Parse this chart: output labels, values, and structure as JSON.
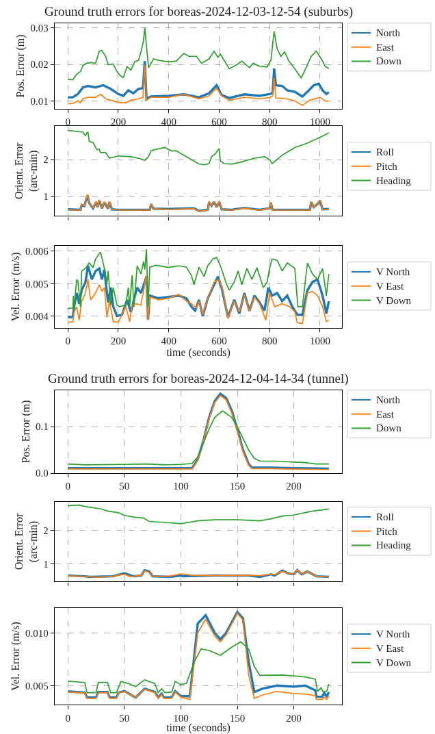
{
  "chart_data": [
    {
      "type": "line",
      "title": "Ground truth errors for boreas-2024-12-03-12-54 (suburbs)",
      "ylabel": "Pos. Error (m)",
      "xlim": [
        -52,
        1087
      ],
      "xticks": [
        0,
        200,
        400,
        600,
        800,
        1000
      ],
      "ylim": [
        0.0078,
        0.0313
      ],
      "yticks": [
        0.01,
        0.02,
        0.03
      ],
      "grid": true,
      "legend": "top right",
      "series": [
        {
          "name": "North",
          "color": "#1f77b4",
          "x": [
            0,
            20,
            40,
            60,
            80,
            110,
            140,
            170,
            200,
            220,
            240,
            260,
            280,
            298,
            305,
            312,
            330,
            400,
            460,
            520,
            560,
            590,
            610,
            640,
            700,
            760,
            800,
            812,
            818,
            825,
            850,
            870,
            900,
            930,
            950,
            975,
            995,
            1010,
            1025,
            1035
          ],
          "values": [
            0.011,
            0.011,
            0.0119,
            0.0137,
            0.0141,
            0.0137,
            0.0143,
            0.0133,
            0.0119,
            0.0114,
            0.0129,
            0.0121,
            0.0133,
            0.0135,
            0.0209,
            0.0106,
            0.0112,
            0.0114,
            0.0118,
            0.011,
            0.0121,
            0.0143,
            0.0116,
            0.0108,
            0.0118,
            0.0114,
            0.0119,
            0.0121,
            0.0189,
            0.0143,
            0.0141,
            0.0129,
            0.0125,
            0.0112,
            0.0125,
            0.0143,
            0.0147,
            0.0129,
            0.0119,
            0.0124
          ]
        },
        {
          "name": "East",
          "color": "#ff7f0e",
          "x": [
            0,
            20,
            40,
            50,
            60,
            80,
            110,
            130,
            150,
            170,
            200,
            230,
            250,
            280,
            298,
            305,
            312,
            330,
            400,
            460,
            520,
            560,
            590,
            610,
            640,
            700,
            760,
            800,
            812,
            818,
            825,
            870,
            900,
            930,
            960,
            1000,
            1020,
            1035
          ],
          "values": [
            0.0092,
            0.0093,
            0.0101,
            0.0095,
            0.0106,
            0.011,
            0.011,
            0.0118,
            0.0106,
            0.0102,
            0.0096,
            0.0095,
            0.0102,
            0.0106,
            0.011,
            0.0199,
            0.0102,
            0.011,
            0.011,
            0.0118,
            0.0106,
            0.0114,
            0.0135,
            0.0114,
            0.0102,
            0.011,
            0.0106,
            0.0109,
            0.0114,
            0.0163,
            0.0108,
            0.0106,
            0.01,
            0.0088,
            0.0102,
            0.011,
            0.01,
            0.0099
          ]
        },
        {
          "name": "Down",
          "color": "#2ca02c",
          "x": [
            0,
            20,
            30,
            40,
            50,
            60,
            75,
            90,
            110,
            125,
            135,
            150,
            160,
            180,
            195,
            210,
            220,
            235,
            250,
            265,
            280,
            290,
            300,
            305,
            310,
            320,
            340,
            360,
            400,
            430,
            460,
            480,
            510,
            530,
            560,
            580,
            595,
            605,
            640,
            670,
            690,
            720,
            735,
            760,
            790,
            805,
            818,
            830,
            845,
            860,
            875,
            900,
            925,
            945,
            965,
            985,
            1005,
            1020,
            1035
          ],
          "values": [
            0.0159,
            0.0158,
            0.0168,
            0.0176,
            0.018,
            0.0197,
            0.0203,
            0.0205,
            0.0203,
            0.0236,
            0.0238,
            0.0222,
            0.0199,
            0.0201,
            0.018,
            0.0168,
            0.0164,
            0.0194,
            0.0184,
            0.0207,
            0.0211,
            0.0234,
            0.0265,
            0.03,
            0.0265,
            0.0191,
            0.0215,
            0.0211,
            0.0207,
            0.0209,
            0.023,
            0.0222,
            0.0222,
            0.0203,
            0.0215,
            0.0236,
            0.0219,
            0.0228,
            0.0188,
            0.0199,
            0.0209,
            0.0191,
            0.0203,
            0.0195,
            0.0193,
            0.0211,
            0.029,
            0.0242,
            0.0222,
            0.0234,
            0.0211,
            0.0188,
            0.0163,
            0.0191,
            0.0222,
            0.0236,
            0.0215,
            0.0195,
            0.0188
          ]
        }
      ]
    },
    {
      "type": "line",
      "ylabel": "Orient. Error\n(arc-min)",
      "xlim": [
        -52,
        1087
      ],
      "xticks": [
        0,
        200,
        400,
        600,
        800,
        1000
      ],
      "ylim": [
        0.46,
        2.92
      ],
      "yticks": [
        1,
        2
      ],
      "grid": true,
      "legend": "top right",
      "tick_labels": "y",
      "series": [
        {
          "name": "Roll",
          "color": "#1f77b4",
          "x": [
            0,
            50,
            55,
            65,
            78,
            85,
            100,
            112,
            118,
            125,
            135,
            145,
            160,
            165,
            175,
            200,
            300,
            325,
            330,
            340,
            400,
            500,
            520,
            555,
            560,
            570,
            580,
            590,
            600,
            610,
            650,
            700,
            760,
            800,
            805,
            812,
            900,
            960,
            965,
            975,
            990,
            1000,
            1010,
            1035
          ],
          "values": [
            0.64,
            0.63,
            0.76,
            0.73,
            1.02,
            0.81,
            0.67,
            0.84,
            0.7,
            0.88,
            0.67,
            0.83,
            0.66,
            0.84,
            0.64,
            0.63,
            0.63,
            0.63,
            0.78,
            0.66,
            0.65,
            0.67,
            0.6,
            0.63,
            0.84,
            0.74,
            0.85,
            0.7,
            0.85,
            0.64,
            0.63,
            0.68,
            0.63,
            0.67,
            0.82,
            0.63,
            0.63,
            0.63,
            0.84,
            0.7,
            0.79,
            0.88,
            0.64,
            0.65
          ]
        },
        {
          "name": "Pitch",
          "color": "#ff7f0e",
          "x": [
            0,
            50,
            55,
            65,
            78,
            85,
            100,
            112,
            118,
            125,
            135,
            145,
            160,
            165,
            175,
            200,
            300,
            325,
            330,
            340,
            400,
            500,
            520,
            555,
            560,
            570,
            580,
            590,
            600,
            610,
            650,
            700,
            760,
            800,
            805,
            812,
            900,
            960,
            965,
            975,
            990,
            1000,
            1010,
            1035
          ],
          "values": [
            0.63,
            0.62,
            0.78,
            0.74,
            1.05,
            0.82,
            0.67,
            0.86,
            0.7,
            0.9,
            0.67,
            0.84,
            0.66,
            0.86,
            0.64,
            0.62,
            0.62,
            0.62,
            0.8,
            0.66,
            0.64,
            0.66,
            0.59,
            0.62,
            0.86,
            0.74,
            0.86,
            0.7,
            0.86,
            0.64,
            0.62,
            0.67,
            0.62,
            0.67,
            0.84,
            0.62,
            0.62,
            0.62,
            0.85,
            0.7,
            0.8,
            0.89,
            0.64,
            0.64
          ]
        },
        {
          "name": "Heading",
          "color": "#2ca02c",
          "x": [
            0,
            60,
            70,
            75,
            80,
            85,
            100,
            115,
            125,
            130,
            150,
            165,
            200,
            250,
            290,
            305,
            320,
            330,
            360,
            385,
            410,
            430,
            460,
            500,
            520,
            540,
            560,
            570,
            585,
            600,
            605,
            620,
            650,
            680,
            710,
            740,
            780,
            800,
            810,
            850,
            900,
            950,
            1000,
            1035
          ],
          "values": [
            2.8,
            2.75,
            2.65,
            2.73,
            2.75,
            2.49,
            2.47,
            2.27,
            2.28,
            2.19,
            2.19,
            2.04,
            2.1,
            2.08,
            2.02,
            1.98,
            2.08,
            2.24,
            2.3,
            2.33,
            2.24,
            2.24,
            2.12,
            1.96,
            1.88,
            1.86,
            1.89,
            2.08,
            2.16,
            2.3,
            1.96,
            1.89,
            1.88,
            1.92,
            1.98,
            2.04,
            2.08,
            2.0,
            1.89,
            2.12,
            2.33,
            2.45,
            2.61,
            2.73
          ]
        }
      ]
    },
    {
      "type": "line",
      "xlabel": "time (seconds)",
      "ylabel": "Vel. Error (m/s)",
      "xlim": [
        -52,
        1087
      ],
      "xticks": [
        0,
        200,
        400,
        600,
        800,
        1000
      ],
      "ylim": [
        0.00364,
        0.00617
      ],
      "yticks": [
        0.004,
        0.005,
        0.006
      ],
      "grid": true,
      "legend": "top right",
      "series": [
        {
          "name": "V North",
          "color": "#1f77b4",
          "x": [
            0,
            20,
            25,
            35,
            45,
            55,
            70,
            80,
            95,
            110,
            125,
            135,
            145,
            155,
            160,
            170,
            180,
            195,
            215,
            235,
            250,
            262,
            275,
            290,
            305,
            312,
            318,
            325,
            360,
            400,
            440,
            470,
            490,
            505,
            520,
            535,
            555,
            580,
            595,
            610,
            635,
            660,
            680,
            700,
            720,
            740,
            760,
            780,
            795,
            810,
            830,
            850,
            870,
            890,
            910,
            930,
            950,
            970,
            990,
            1010,
            1025,
            1035
          ],
          "values": [
            0.00396,
            0.00397,
            0.00429,
            0.00471,
            0.00438,
            0.0048,
            0.00505,
            0.00555,
            0.00513,
            0.00539,
            0.00547,
            0.00513,
            0.00543,
            0.00471,
            0.00442,
            0.00488,
            0.00429,
            0.004,
            0.00404,
            0.0045,
            0.00412,
            0.0045,
            0.00488,
            0.00471,
            0.00505,
            0.00522,
            0.00389,
            0.00463,
            0.00455,
            0.00459,
            0.00463,
            0.00455,
            0.00429,
            0.00417,
            0.0045,
            0.004,
            0.00455,
            0.00497,
            0.00522,
            0.00488,
            0.00396,
            0.0045,
            0.00408,
            0.00471,
            0.00416,
            0.00463,
            0.00442,
            0.00417,
            0.00488,
            0.00463,
            0.00471,
            0.00446,
            0.00463,
            0.00429,
            0.00404,
            0.00404,
            0.0048,
            0.00505,
            0.00513,
            0.00463,
            0.00408,
            0.00446
          ]
        },
        {
          "name": "V East",
          "color": "#ff7f0e",
          "x": [
            0,
            20,
            25,
            35,
            45,
            55,
            70,
            80,
            90,
            110,
            125,
            135,
            145,
            155,
            165,
            180,
            200,
            230,
            245,
            255,
            270,
            290,
            305,
            312,
            318,
            325,
            360,
            400,
            440,
            470,
            490,
            510,
            520,
            535,
            555,
            580,
            600,
            615,
            635,
            660,
            680,
            700,
            720,
            740,
            760,
            785,
            800,
            820,
            850,
            880,
            900,
            910,
            930,
            950,
            970,
            990,
            1010,
            1025,
            1035
          ],
          "values": [
            0.00381,
            0.00382,
            0.00413,
            0.00429,
            0.00387,
            0.00446,
            0.00471,
            0.00513,
            0.0045,
            0.00471,
            0.00497,
            0.00476,
            0.00488,
            0.00396,
            0.00446,
            0.00383,
            0.00381,
            0.00429,
            0.00383,
            0.00434,
            0.00438,
            0.00434,
            0.00497,
            0.00526,
            0.00387,
            0.00459,
            0.0045,
            0.00455,
            0.00467,
            0.00446,
            0.00438,
            0.00425,
            0.00446,
            0.00404,
            0.00455,
            0.00505,
            0.00513,
            0.0048,
            0.00392,
            0.00446,
            0.00413,
            0.00467,
            0.00416,
            0.00459,
            0.00438,
            0.00387,
            0.00471,
            0.00429,
            0.00438,
            0.00429,
            0.00413,
            0.00379,
            0.00377,
            0.00471,
            0.00476,
            0.00463,
            0.00429,
            0.00383,
            0.00387
          ]
        },
        {
          "name": "V Down",
          "color": "#2ca02c",
          "x": [
            0,
            20,
            22,
            25,
            35,
            40,
            50,
            55,
            70,
            85,
            100,
            110,
            125,
            130,
            145,
            155,
            160,
            170,
            180,
            195,
            205,
            230,
            240,
            245,
            255,
            262,
            275,
            290,
            300,
            305,
            312,
            318,
            325,
            350,
            400,
            440,
            470,
            490,
            500,
            520,
            540,
            555,
            575,
            590,
            605,
            630,
            640,
            660,
            675,
            690,
            710,
            730,
            750,
            775,
            790,
            800,
            810,
            830,
            850,
            870,
            900,
            912,
            930,
            950,
            970,
            990,
            1010,
            1025,
            1035
          ],
          "values": [
            0.00423,
            0.00425,
            0.00463,
            0.00425,
            0.00513,
            0.00507,
            0.00429,
            0.00539,
            0.00547,
            0.00564,
            0.00549,
            0.00576,
            0.00593,
            0.00597,
            0.00547,
            0.00501,
            0.00539,
            0.00434,
            0.00488,
            0.00434,
            0.00429,
            0.00434,
            0.00488,
            0.00429,
            0.00526,
            0.00429,
            0.00555,
            0.0053,
            0.00568,
            0.00543,
            0.00606,
            0.00429,
            0.00551,
            0.00557,
            0.0055,
            0.00555,
            0.00551,
            0.00526,
            0.00497,
            0.00551,
            0.00522,
            0.00555,
            0.00576,
            0.00581,
            0.00555,
            0.00497,
            0.0048,
            0.00505,
            0.00539,
            0.00497,
            0.00547,
            0.00513,
            0.00549,
            0.00488,
            0.00505,
            0.00547,
            0.00576,
            0.00572,
            0.00539,
            0.00564,
            0.00547,
            0.00429,
            0.00429,
            0.00564,
            0.0053,
            0.00513,
            0.00547,
            0.00463,
            0.0053
          ]
        }
      ]
    },
    {
      "type": "line",
      "title": "Ground truth errors for boreas-2024-12-04-14-34 (tunnel)",
      "ylabel": "Pos. Error (m)",
      "xlim": [
        -11.6,
        242.6
      ],
      "xticks": [
        0,
        50,
        100,
        150,
        200
      ],
      "ylim": [
        0,
        0.179
      ],
      "yticks": [
        {
          "value": 0,
          "label": "0.0"
        },
        0.1
      ],
      "grid": true,
      "legend": "top right",
      "series": [
        {
          "name": "North",
          "color": "#1f77b4",
          "x": [
            0,
            50,
            100,
            110,
            115,
            120,
            125,
            130,
            135,
            140,
            145,
            150,
            155,
            160,
            163,
            180,
            200,
            231
          ],
          "values": [
            0.011,
            0.011,
            0.011,
            0.011,
            0.03,
            0.07,
            0.12,
            0.155,
            0.171,
            0.162,
            0.135,
            0.095,
            0.05,
            0.02,
            0.012,
            0.012,
            0.011,
            0.01
          ]
        },
        {
          "name": "East",
          "color": "#ff7f0e",
          "x": [
            0,
            50,
            100,
            110,
            115,
            120,
            125,
            130,
            135,
            140,
            145,
            150,
            155,
            160,
            163,
            180,
            200,
            231
          ],
          "values": [
            0.0095,
            0.0095,
            0.0095,
            0.0095,
            0.028,
            0.068,
            0.117,
            0.152,
            0.167,
            0.158,
            0.13,
            0.09,
            0.046,
            0.017,
            0.01,
            0.01,
            0.009,
            0.008
          ]
        },
        {
          "name": "Down",
          "color": "#2ca02c",
          "x": [
            0,
            15,
            50,
            70,
            85,
            100,
            110,
            115,
            120,
            125,
            130,
            137,
            145,
            150,
            155,
            160,
            165,
            170,
            185,
            200,
            210,
            220,
            231
          ],
          "values": [
            0.02,
            0.018,
            0.019,
            0.02,
            0.018,
            0.019,
            0.021,
            0.035,
            0.065,
            0.095,
            0.12,
            0.134,
            0.12,
            0.1,
            0.075,
            0.05,
            0.032,
            0.026,
            0.026,
            0.024,
            0.023,
            0.02,
            0.02
          ]
        }
      ]
    },
    {
      "type": "line",
      "ylabel": "Orient. Error\n(arc-min)",
      "xlim": [
        -11.6,
        242.6
      ],
      "xticks": [
        0,
        50,
        100,
        150,
        200
      ],
      "ylim": [
        0.47,
        2.86
      ],
      "yticks": [
        1,
        2
      ],
      "grid": true,
      "legend": "top right",
      "tick_labels": "y",
      "series": [
        {
          "name": "Roll",
          "color": "#1f77b4",
          "x": [
            0,
            15,
            20,
            40,
            50,
            58,
            65,
            68,
            72,
            75,
            90,
            100,
            102,
            130,
            160,
            170,
            180,
            183,
            190,
            195,
            200,
            203,
            207,
            212,
            220,
            231
          ],
          "values": [
            0.65,
            0.63,
            0.61,
            0.63,
            0.72,
            0.63,
            0.65,
            0.81,
            0.77,
            0.63,
            0.61,
            0.65,
            0.63,
            0.65,
            0.65,
            0.61,
            0.69,
            0.65,
            0.8,
            0.71,
            0.69,
            0.81,
            0.69,
            0.77,
            0.63,
            0.61
          ]
        },
        {
          "name": "Pitch",
          "color": "#ff7f0e",
          "x": [
            0,
            15,
            25,
            40,
            50,
            55,
            65,
            68,
            72,
            75,
            90,
            100,
            110,
            130,
            150,
            170,
            180,
            183,
            190,
            195,
            200,
            203,
            207,
            212,
            220,
            231
          ],
          "values": [
            0.64,
            0.63,
            0.6,
            0.63,
            0.69,
            0.62,
            0.66,
            0.79,
            0.75,
            0.63,
            0.63,
            0.7,
            0.66,
            0.65,
            0.66,
            0.65,
            0.69,
            0.67,
            0.78,
            0.71,
            0.69,
            0.81,
            0.7,
            0.77,
            0.63,
            0.61
          ]
        },
        {
          "name": "Heading",
          "color": "#2ca02c",
          "x": [
            0,
            10,
            15,
            30,
            35,
            45,
            50,
            60,
            67,
            72,
            90,
            100,
            115,
            130,
            150,
            170,
            180,
            190,
            200,
            215,
            231
          ],
          "values": [
            2.74,
            2.76,
            2.72,
            2.64,
            2.58,
            2.53,
            2.45,
            2.39,
            2.37,
            2.27,
            2.23,
            2.2,
            2.29,
            2.32,
            2.32,
            2.29,
            2.35,
            2.43,
            2.46,
            2.57,
            2.64
          ]
        }
      ]
    },
    {
      "type": "line",
      "xlabel": "time (seconds)",
      "ylabel": "Vel. Error (m/s)",
      "xlim": [
        -11.6,
        242.6
      ],
      "xticks": [
        0,
        50,
        100,
        150,
        200
      ],
      "ylim": [
        0.00318,
        0.01236
      ],
      "yticks": [
        0.005,
        {
          "value": 0.01,
          "label": "0.010"
        }
      ],
      "grid": true,
      "legend": "top right",
      "series": [
        {
          "name": "V North",
          "color": "#1f77b4",
          "x": [
            0,
            15,
            17,
            25,
            27,
            35,
            37,
            43,
            45,
            50,
            60,
            68,
            77,
            80,
            83,
            85,
            92,
            95,
            100,
            108,
            115,
            122,
            130,
            135,
            140,
            150,
            155,
            160,
            165,
            172,
            185,
            200,
            210,
            219,
            220,
            225,
            227,
            229,
            231
          ],
          "values": [
            0.00445,
            0.00433,
            0.00388,
            0.00388,
            0.00439,
            0.00439,
            0.00388,
            0.00388,
            0.00433,
            0.00448,
            0.00388,
            0.0047,
            0.00439,
            0.00388,
            0.00424,
            0.00388,
            0.00388,
            0.00448,
            0.004,
            0.004,
            0.0109,
            0.01167,
            0.01,
            0.00939,
            0.01,
            0.01197,
            0.01136,
            0.00727,
            0.00439,
            0.0047,
            0.005,
            0.00491,
            0.005,
            0.00455,
            0.00394,
            0.00394,
            0.0043,
            0.00394,
            0.00439
          ]
        },
        {
          "name": "V East",
          "color": "#ff7f0e",
          "x": [
            0,
            15,
            17,
            25,
            27,
            35,
            37,
            43,
            45,
            50,
            60,
            68,
            77,
            80,
            83,
            85,
            92,
            95,
            100,
            108,
            115,
            122,
            130,
            135,
            140,
            150,
            155,
            160,
            165,
            172,
            185,
            200,
            210,
            219,
            220,
            225,
            227,
            229,
            231
          ],
          "values": [
            0.00439,
            0.0043,
            0.0038,
            0.0038,
            0.00433,
            0.00433,
            0.0038,
            0.0038,
            0.0043,
            0.00442,
            0.00391,
            0.00467,
            0.00433,
            0.0038,
            0.00415,
            0.0038,
            0.0038,
            0.00439,
            0.00391,
            0.0037,
            0.01,
            0.0113,
            0.0097,
            0.00915,
            0.0098,
            0.01185,
            0.0112,
            0.006,
            0.0038,
            0.0041,
            0.00445,
            0.00425,
            0.0042,
            0.00405,
            0.0037,
            0.0037,
            0.0039,
            0.0037,
            0.004
          ]
        },
        {
          "name": "V Down",
          "color": "#2ca02c",
          "x": [
            0,
            15,
            17,
            25,
            27,
            35,
            38,
            43,
            47,
            55,
            60,
            68,
            77,
            80,
            83,
            86,
            92,
            95,
            100,
            105,
            112,
            118,
            125,
            135,
            145,
            153,
            160,
            165,
            170,
            190,
            210,
            219,
            221,
            224,
            226,
            229,
            231
          ],
          "values": [
            0.00542,
            0.0053,
            0.00433,
            0.00433,
            0.0053,
            0.0053,
            0.00433,
            0.00433,
            0.00539,
            0.00515,
            0.00491,
            0.00555,
            0.00521,
            0.00433,
            0.0047,
            0.00433,
            0.00439,
            0.00539,
            0.00509,
            0.00521,
            0.00727,
            0.00848,
            0.00833,
            0.00788,
            0.00864,
            0.00915,
            0.00848,
            0.00682,
            0.00597,
            0.006,
            0.00582,
            0.00561,
            0.00445,
            0.00479,
            0.00439,
            0.00445,
            0.00515
          ]
        }
      ]
    }
  ]
}
